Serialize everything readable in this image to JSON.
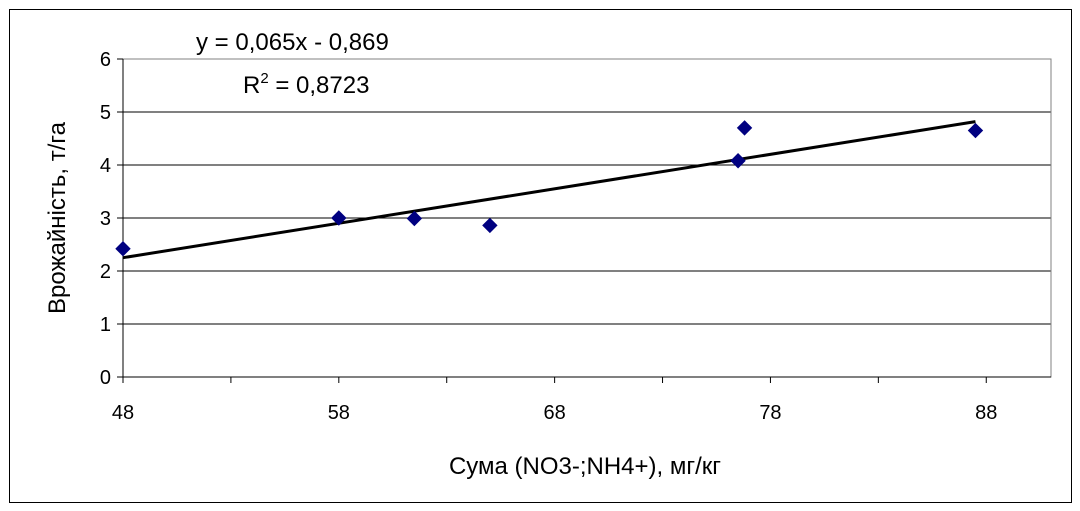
{
  "chart_data": {
    "type": "scatter",
    "xlabel": "Сума (NO3-;NH4+), мг/кг",
    "ylabel": "Врожайність, т/га",
    "xlim": [
      48,
      91
    ],
    "ylim": [
      0,
      6
    ],
    "xticks": [
      48,
      58,
      68,
      78,
      88
    ],
    "yticks": [
      0,
      1,
      2,
      3,
      4,
      5,
      6
    ],
    "grid": "horizontal",
    "marker_color": "#000080",
    "series": [
      {
        "x": [
          48,
          58,
          61.5,
          65,
          76.5,
          76.8,
          87.5
        ],
        "y": [
          2.42,
          3.0,
          2.99,
          2.86,
          4.08,
          4.7,
          4.65
        ]
      }
    ],
    "trendline": {
      "slope": 0.065,
      "intercept": -0.869,
      "x_range": [
        48,
        87.5
      ],
      "equation_label": "y = 0,065x - 0,869",
      "r2_prefix": "R",
      "r2_sup": "2",
      "r2_suffix": " = 0,8723"
    }
  }
}
